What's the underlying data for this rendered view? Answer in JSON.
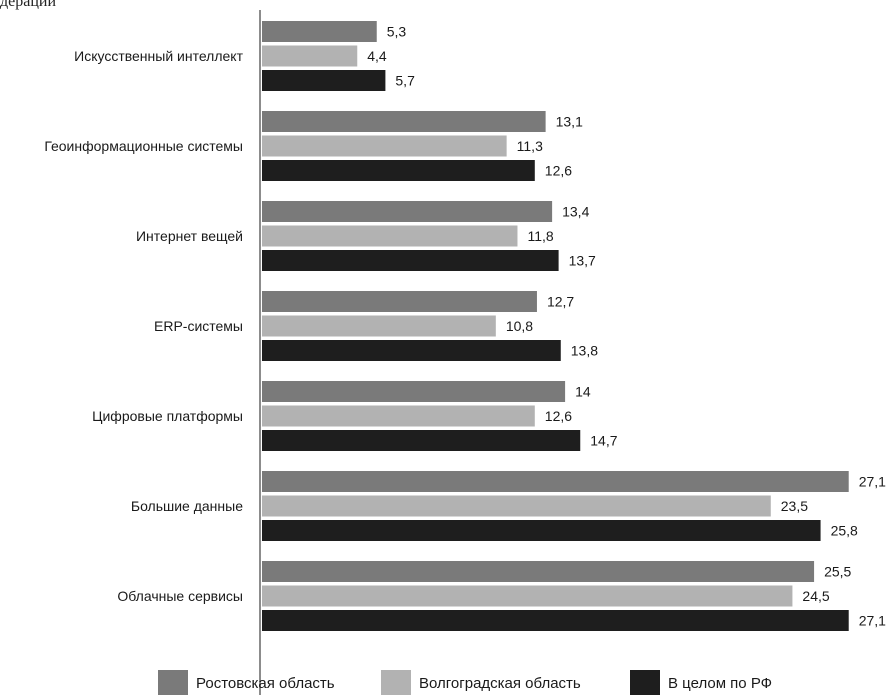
{
  "top_fragment": "дерации",
  "chart_data": {
    "type": "bar",
    "orientation": "horizontal",
    "categories": [
      "Искусственный интеллект",
      "Геоинформационные системы",
      "Интернет вещей",
      "ERP-системы",
      "Цифровые платформы",
      "Большие данные",
      "Облачные сервисы"
    ],
    "series": [
      {
        "name": "Ростовская область",
        "color": "#7a7a7a",
        "values": [
          5.3,
          13.1,
          13.4,
          12.7,
          14,
          27.1,
          25.5
        ],
        "labels": [
          "5,3",
          "13,1",
          "13,4",
          "12,7",
          "14",
          "27,1",
          "25,5"
        ]
      },
      {
        "name": "Волгоградская область",
        "color": "#b2b2b2",
        "values": [
          4.4,
          11.3,
          11.8,
          10.8,
          12.6,
          23.5,
          24.5
        ],
        "labels": [
          "4,4",
          "11,3",
          "11,8",
          "10,8",
          "12,6",
          "23,5",
          "24,5"
        ]
      },
      {
        "name": "В целом по РФ",
        "color": "#1e1e1e",
        "values": [
          5.7,
          12.6,
          13.7,
          13.8,
          14.7,
          25.8,
          27.1
        ],
        "labels": [
          "5,7",
          "12,6",
          "13,7",
          "13,8",
          "14,7",
          "25,8",
          "27,1"
        ]
      }
    ],
    "xlim": [
      0,
      27.1
    ],
    "grid": false,
    "legend_position": "bottom"
  }
}
